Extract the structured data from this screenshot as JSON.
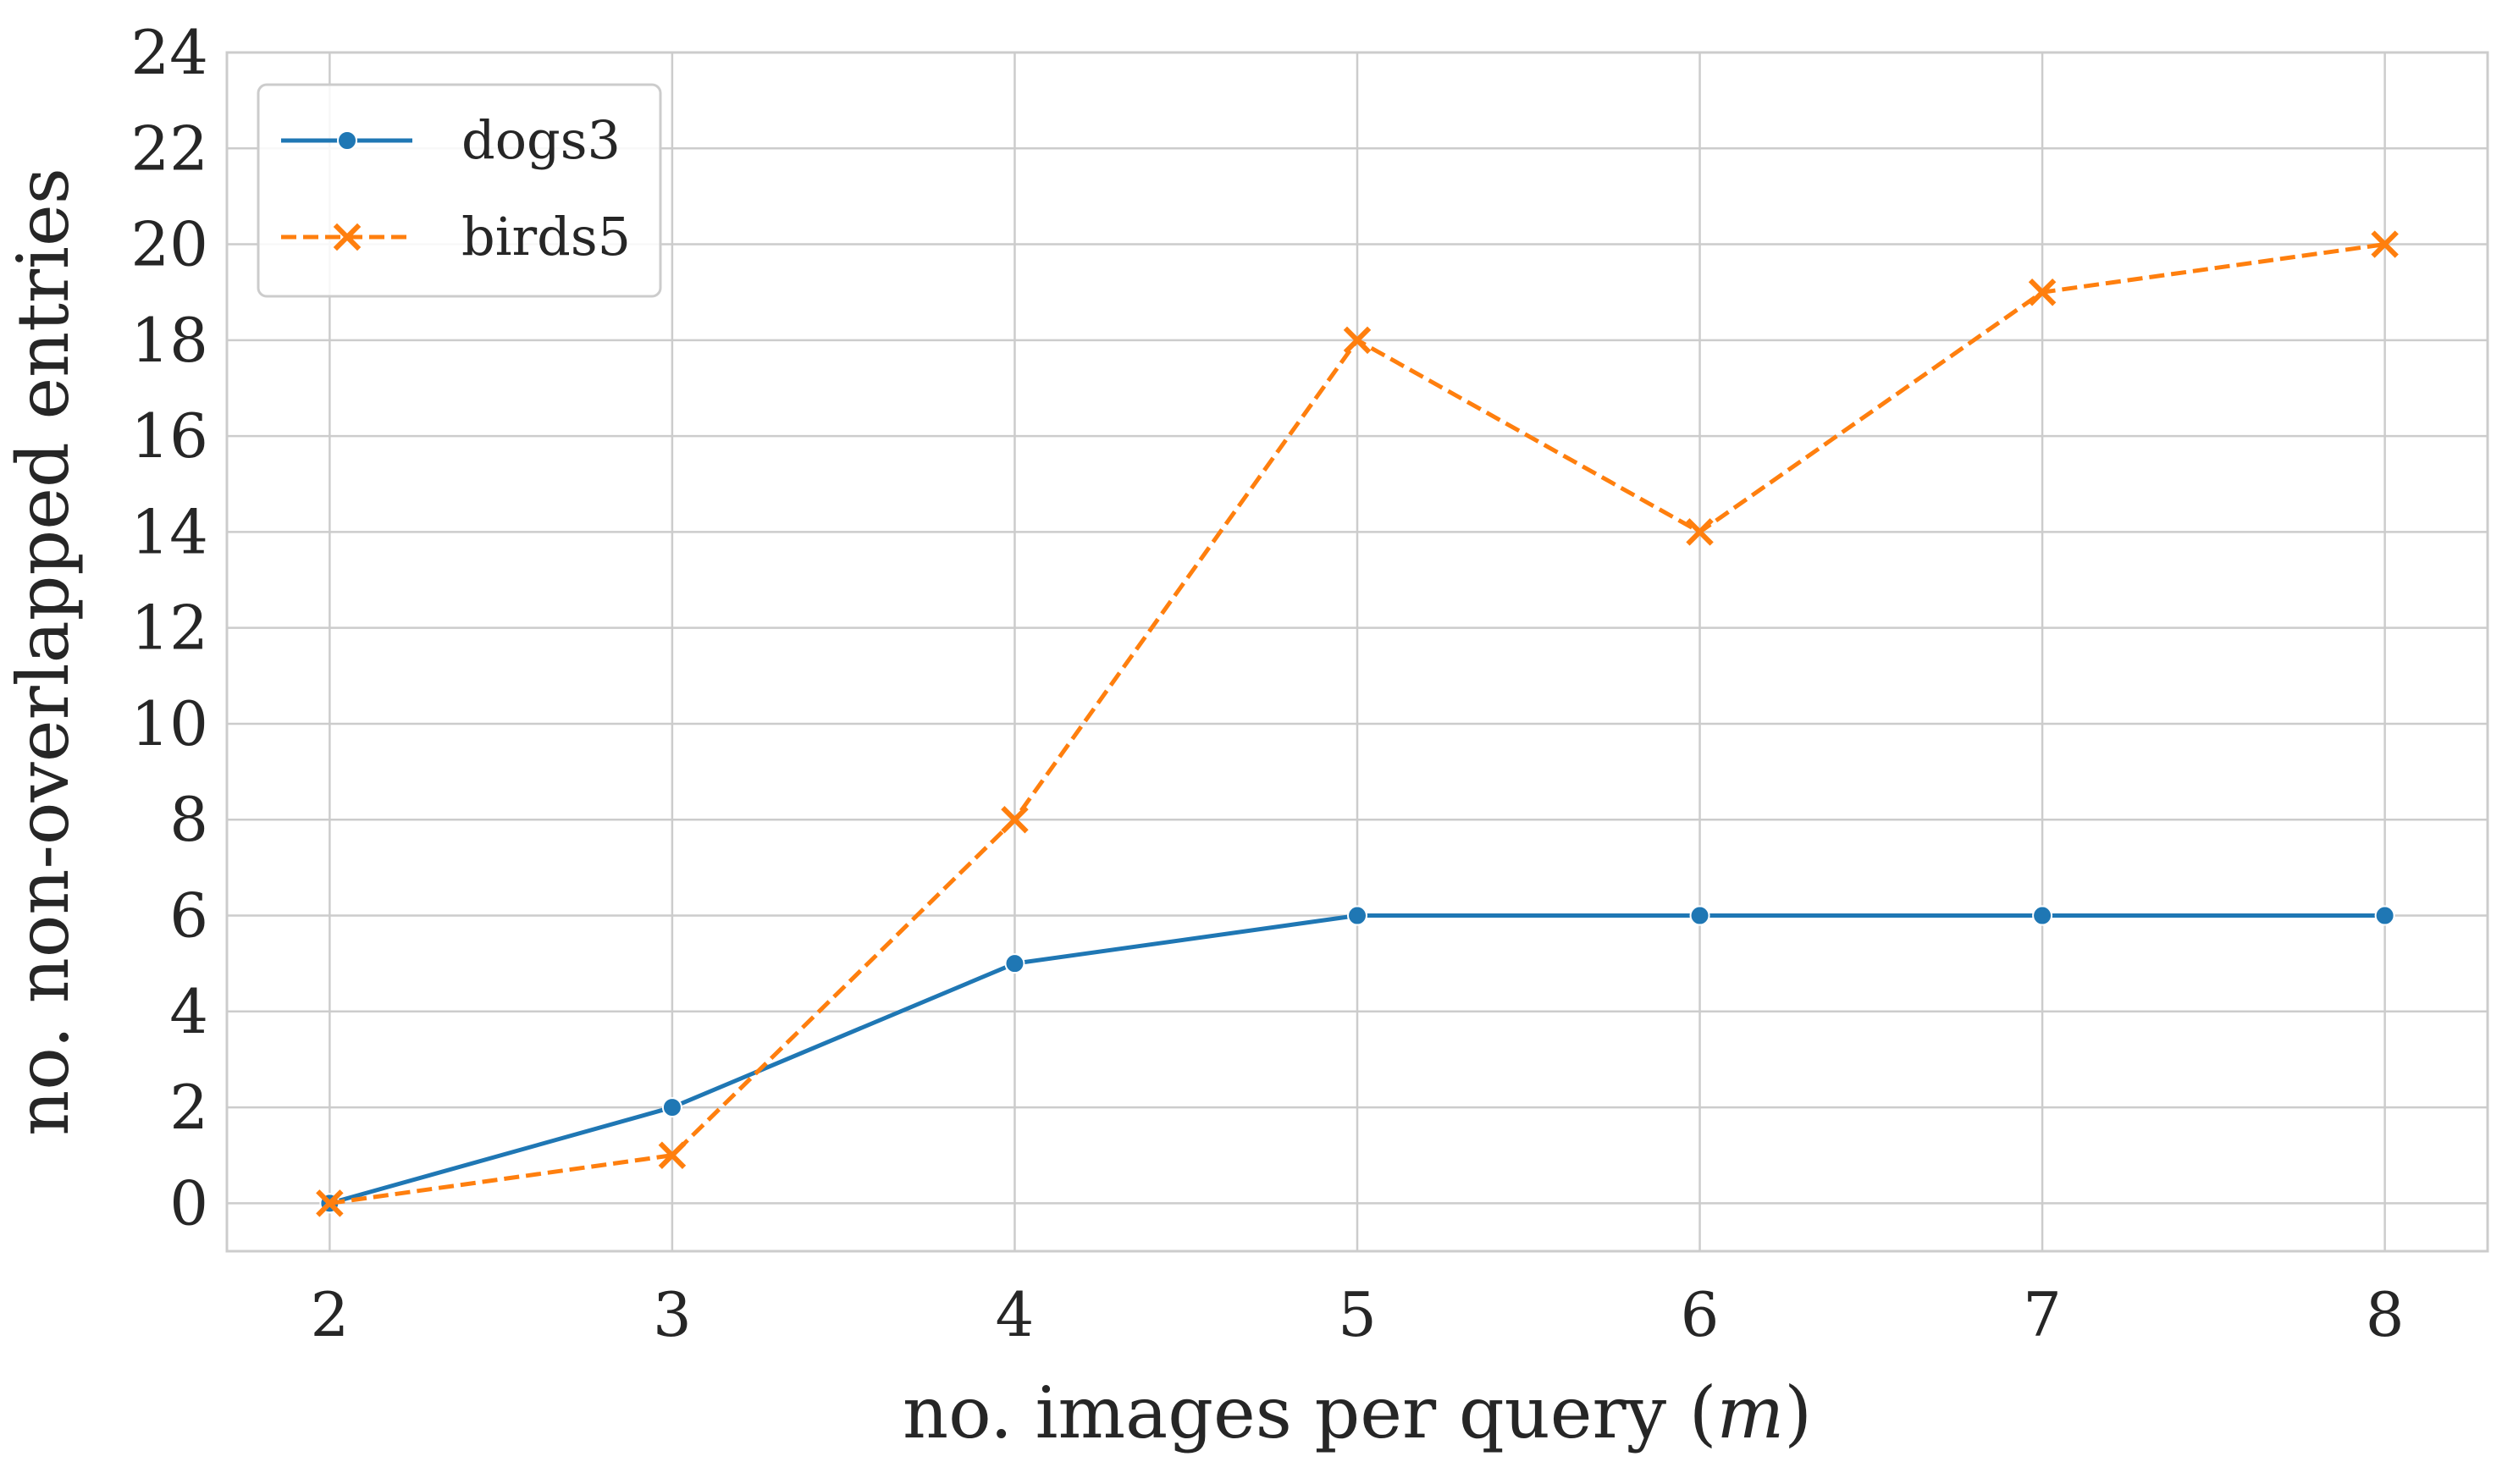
{
  "chart_data": {
    "type": "line",
    "title": "",
    "xlabel": "no. images per query (m)",
    "xlabel_prefix": "no. images per query (",
    "xlabel_symbol": "m",
    "xlabel_suffix": ")",
    "ylabel": "no. non-overlapped entries",
    "x": [
      2,
      3,
      4,
      5,
      6,
      7,
      8
    ],
    "xlim": [
      1.7,
      8.3
    ],
    "ylim": [
      -1,
      24
    ],
    "xticks": [
      2,
      3,
      4,
      5,
      6,
      7,
      8
    ],
    "yticks": [
      0,
      2,
      4,
      6,
      8,
      10,
      12,
      14,
      16,
      18,
      20,
      22,
      24
    ],
    "grid": true,
    "legend_position": "top-left",
    "series": [
      {
        "name": "dogs3",
        "values": [
          0,
          2,
          5,
          6,
          6,
          6,
          6
        ],
        "color": "#1f77b4",
        "marker": "circle",
        "line": "solid"
      },
      {
        "name": "birds5",
        "values": [
          0,
          1,
          8,
          18,
          14,
          19,
          20
        ],
        "color": "#ff7f0e",
        "marker": "x",
        "line": "dashed"
      }
    ]
  }
}
